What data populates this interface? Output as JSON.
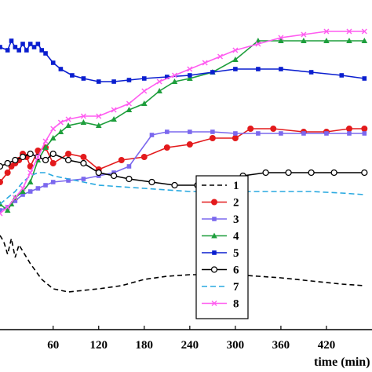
{
  "chart_data": {
    "type": "line",
    "title": "",
    "xlabel": "time (min)",
    "ylabel": "",
    "xlim": [
      -10,
      480
    ],
    "ylim": [
      0,
      100
    ],
    "xticks": [
      "60",
      "120",
      "180",
      "240",
      "300",
      "360",
      "420"
    ],
    "grid": false,
    "legend_position": "bottom-right",
    "series": [
      {
        "name": "1",
        "color": "#000000",
        "dash": "6,4",
        "marker": "none",
        "x": [
          -10,
          -5,
          0,
          5,
          10,
          15,
          20,
          30,
          45,
          60,
          80,
          100,
          120,
          150,
          180,
          210,
          240,
          270,
          300,
          330,
          360,
          400,
          440,
          470
        ],
        "y": [
          30,
          28,
          24,
          29,
          23,
          27,
          25,
          21,
          16,
          13,
          12,
          12.5,
          13,
          14,
          16,
          17,
          17.5,
          17.5,
          17.5,
          17,
          16.5,
          15.5,
          14.5,
          14
        ]
      },
      {
        "name": "2",
        "color": "#e31a1c",
        "marker": "circle",
        "x": [
          -10,
          0,
          5,
          10,
          15,
          20,
          25,
          30,
          40,
          50,
          60,
          80,
          100,
          120,
          150,
          180,
          210,
          240,
          270,
          300,
          320,
          350,
          390,
          420,
          450,
          470
        ],
        "y": [
          47,
          50,
          52,
          53,
          54,
          56,
          55,
          52,
          57,
          58,
          53,
          56,
          55,
          51,
          54,
          55,
          58,
          59,
          61,
          61,
          64,
          64,
          63,
          63,
          64,
          64
        ]
      },
      {
        "name": "3",
        "color": "#7b68ee",
        "marker": "square",
        "x": [
          -10,
          0,
          10,
          20,
          30,
          40,
          50,
          60,
          80,
          100,
          120,
          140,
          160,
          190,
          210,
          240,
          270,
          300,
          330,
          360,
          390,
          420,
          450,
          470
        ],
        "y": [
          38,
          39,
          41,
          43,
          44,
          45,
          46,
          47,
          47.5,
          48,
          49,
          50,
          52,
          62,
          63,
          63,
          63,
          62.5,
          62.5,
          62.5,
          62.5,
          62.5,
          62.5,
          62.5
        ]
      },
      {
        "name": "4",
        "color": "#1e9e3c",
        "marker": "triangle",
        "x": [
          -10,
          0,
          5,
          10,
          20,
          30,
          40,
          50,
          60,
          70,
          80,
          100,
          120,
          140,
          160,
          180,
          200,
          220,
          240,
          270,
          300,
          330,
          360,
          390,
          420,
          450,
          470
        ],
        "y": [
          40,
          38,
          40,
          42,
          44,
          47,
          54,
          58,
          61,
          63,
          65,
          66,
          65,
          67,
          70,
          72,
          76,
          79,
          80,
          82,
          86,
          92,
          92,
          92,
          92,
          92,
          92
        ]
      },
      {
        "name": "5",
        "color": "#0a1ecf",
        "marker": "square",
        "x": [
          -10,
          0,
          5,
          10,
          15,
          20,
          25,
          30,
          35,
          40,
          45,
          50,
          60,
          70,
          85,
          100,
          120,
          140,
          160,
          180,
          210,
          240,
          270,
          300,
          330,
          360,
          400,
          440,
          470
        ],
        "y": [
          90,
          89,
          92,
          90,
          89,
          91,
          89,
          91,
          90,
          91,
          89,
          88,
          85,
          83,
          81,
          80,
          79,
          79,
          79.5,
          80,
          80.5,
          81,
          82,
          83,
          83,
          83,
          82,
          81,
          80
        ]
      },
      {
        "name": "6",
        "color": "#000000",
        "marker": "open-circle",
        "x": [
          -10,
          0,
          10,
          20,
          30,
          40,
          50,
          60,
          80,
          100,
          120,
          140,
          160,
          190,
          220,
          250,
          280,
          310,
          340,
          370,
          400,
          430,
          470
        ],
        "y": [
          52,
          53,
          54,
          55,
          56,
          55,
          54,
          56,
          54,
          53,
          50,
          49,
          48,
          47,
          46,
          46,
          48,
          49,
          50,
          50,
          50,
          50,
          50
        ]
      },
      {
        "name": "7",
        "color": "#29a9e0",
        "dash": "7,4",
        "marker": "none",
        "x": [
          -10,
          0,
          10,
          20,
          30,
          40,
          50,
          60,
          80,
          100,
          120,
          150,
          180,
          210,
          240,
          270,
          300,
          330,
          360,
          400,
          440,
          470
        ],
        "y": [
          40,
          42,
          44,
          47,
          49,
          50,
          50,
          49,
          48,
          47,
          46,
          45.5,
          45,
          44.5,
          44,
          44,
          44,
          44,
          44,
          44,
          43.5,
          43
        ]
      },
      {
        "name": "8",
        "color": "#ff5cf0",
        "marker": "x",
        "x": [
          -10,
          0,
          10,
          20,
          30,
          40,
          50,
          60,
          70,
          80,
          100,
          120,
          140,
          160,
          180,
          200,
          220,
          240,
          260,
          280,
          300,
          330,
          360,
          390,
          420,
          450,
          470
        ],
        "y": [
          37,
          39,
          42,
          45,
          50,
          55,
          60,
          64,
          66,
          67,
          68,
          68,
          70,
          72,
          76,
          79,
          81,
          83,
          85,
          87,
          89,
          91,
          93,
          94,
          95,
          95,
          95
        ]
      }
    ]
  }
}
